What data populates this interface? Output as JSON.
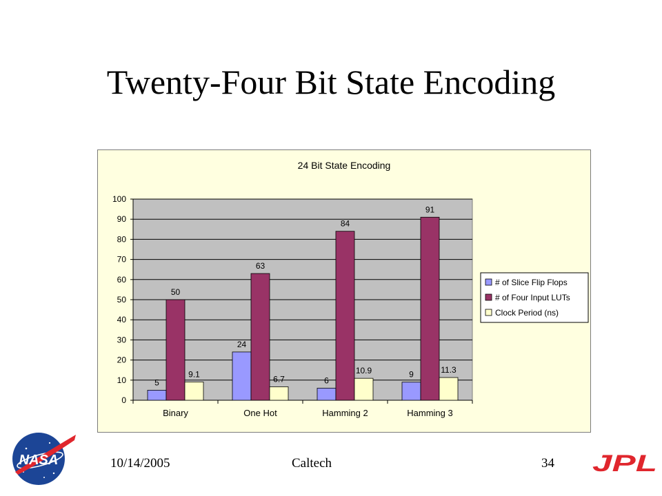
{
  "slide": {
    "title": "Twenty-Four Bit State Encoding",
    "footer": {
      "date": "10/14/2005",
      "organization": "Caltech",
      "page_number": "34"
    },
    "logos": {
      "left": "NASA",
      "right": "JPL"
    }
  },
  "chart_data": {
    "type": "bar",
    "title": "24 Bit State Encoding",
    "xlabel": "",
    "ylabel": "",
    "categories": [
      "Binary",
      "One Hot",
      "Hamming 2",
      "Hamming 3"
    ],
    "series": [
      {
        "name": "# of Slice Flip Flops",
        "values": [
          5,
          24,
          6,
          9
        ],
        "labels": [
          "5",
          "24",
          "6",
          "9"
        ],
        "color": "#9999ff"
      },
      {
        "name": "# of Four Input LUTs",
        "values": [
          50,
          63,
          84,
          91
        ],
        "labels": [
          "50",
          "63",
          "84",
          "91"
        ],
        "color": "#993366"
      },
      {
        "name": "Clock Period (ns)",
        "values": [
          9.1,
          6.7,
          10.9,
          11.3
        ],
        "labels": [
          "9.1",
          "6.7",
          "10.9",
          "11.3"
        ],
        "color": "#ffffcc"
      }
    ],
    "ylim": [
      0,
      100
    ],
    "yticks": [
      "0",
      "10",
      "20",
      "30",
      "40",
      "50",
      "60",
      "70",
      "80",
      "90",
      "100"
    ],
    "grid": true,
    "legend": "right",
    "colors": {
      "plot_background": "#c0c0c0",
      "chart_background": "#ffffe0",
      "gridline": "#000000"
    }
  }
}
